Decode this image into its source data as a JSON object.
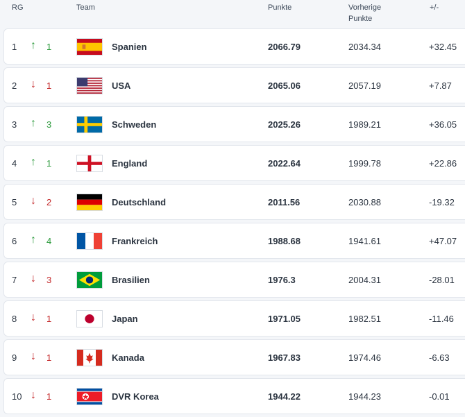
{
  "header": {
    "rank": "RG",
    "team": "Team",
    "points": "Punkte",
    "previous": "Vorherige Punkte",
    "diff": "+/-"
  },
  "rows": [
    {
      "rank": "1",
      "direction": "up",
      "arrow": "↑",
      "change": "1",
      "flag": "spain-flag",
      "team": "Spanien",
      "points": "2066.79",
      "previous": "2034.34",
      "diff": "+32.45"
    },
    {
      "rank": "2",
      "direction": "down",
      "arrow": "↓",
      "change": "1",
      "flag": "usa-flag",
      "team": "USA",
      "points": "2065.06",
      "previous": "2057.19",
      "diff": "+7.87"
    },
    {
      "rank": "3",
      "direction": "up",
      "arrow": "↑",
      "change": "3",
      "flag": "sweden-flag",
      "team": "Schweden",
      "points": "2025.26",
      "previous": "1989.21",
      "diff": "+36.05"
    },
    {
      "rank": "4",
      "direction": "up",
      "arrow": "↑",
      "change": "1",
      "flag": "england-flag",
      "team": "England",
      "points": "2022.64",
      "previous": "1999.78",
      "diff": "+22.86"
    },
    {
      "rank": "5",
      "direction": "down",
      "arrow": "↓",
      "change": "2",
      "flag": "germany-flag",
      "team": "Deutschland",
      "points": "2011.56",
      "previous": "2030.88",
      "diff": "-19.32"
    },
    {
      "rank": "6",
      "direction": "up",
      "arrow": "↑",
      "change": "4",
      "flag": "france-flag",
      "team": "Frankreich",
      "points": "1988.68",
      "previous": "1941.61",
      "diff": "+47.07"
    },
    {
      "rank": "7",
      "direction": "down",
      "arrow": "↓",
      "change": "3",
      "flag": "brazil-flag",
      "team": "Brasilien",
      "points": "1976.3",
      "previous": "2004.31",
      "diff": "-28.01"
    },
    {
      "rank": "8",
      "direction": "down",
      "arrow": "↓",
      "change": "1",
      "flag": "japan-flag",
      "team": "Japan",
      "points": "1971.05",
      "previous": "1982.51",
      "diff": "-11.46"
    },
    {
      "rank": "9",
      "direction": "down",
      "arrow": "↓",
      "change": "1",
      "flag": "canada-flag",
      "team": "Kanada",
      "points": "1967.83",
      "previous": "1974.46",
      "diff": "-6.63"
    },
    {
      "rank": "10",
      "direction": "down",
      "arrow": "↓",
      "change": "1",
      "flag": "north-korea-flag",
      "team": "DVR Korea",
      "points": "1944.22",
      "previous": "1944.23",
      "diff": "-0.01"
    }
  ]
}
